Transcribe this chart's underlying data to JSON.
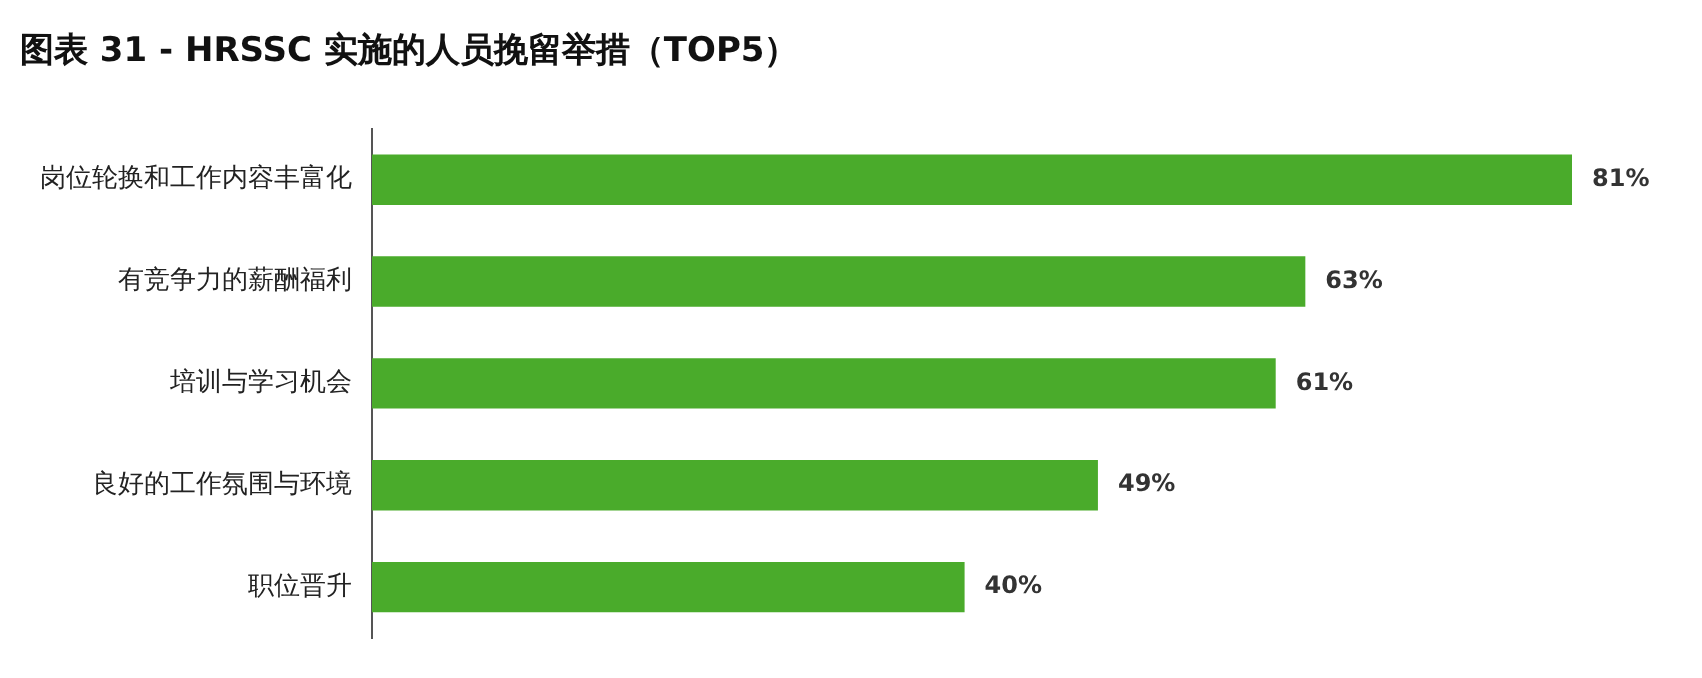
{
  "chart_data": {
    "type": "bar",
    "title": "图表 31 - HRSSC 实施的人员挽留举措（TOP5）",
    "orientation": "horizontal",
    "categories": [
      "岗位轮换和工作内容丰富化",
      "有竞争力的薪酬福利",
      "培训与学习机会",
      "良好的工作氛围与环境",
      "职位晋升"
    ],
    "values": [
      81,
      63,
      61,
      49,
      40
    ],
    "value_labels": [
      "81%",
      "63%",
      "61%",
      "49%",
      "40%"
    ],
    "color": "#4aab2b",
    "legend": false
  }
}
